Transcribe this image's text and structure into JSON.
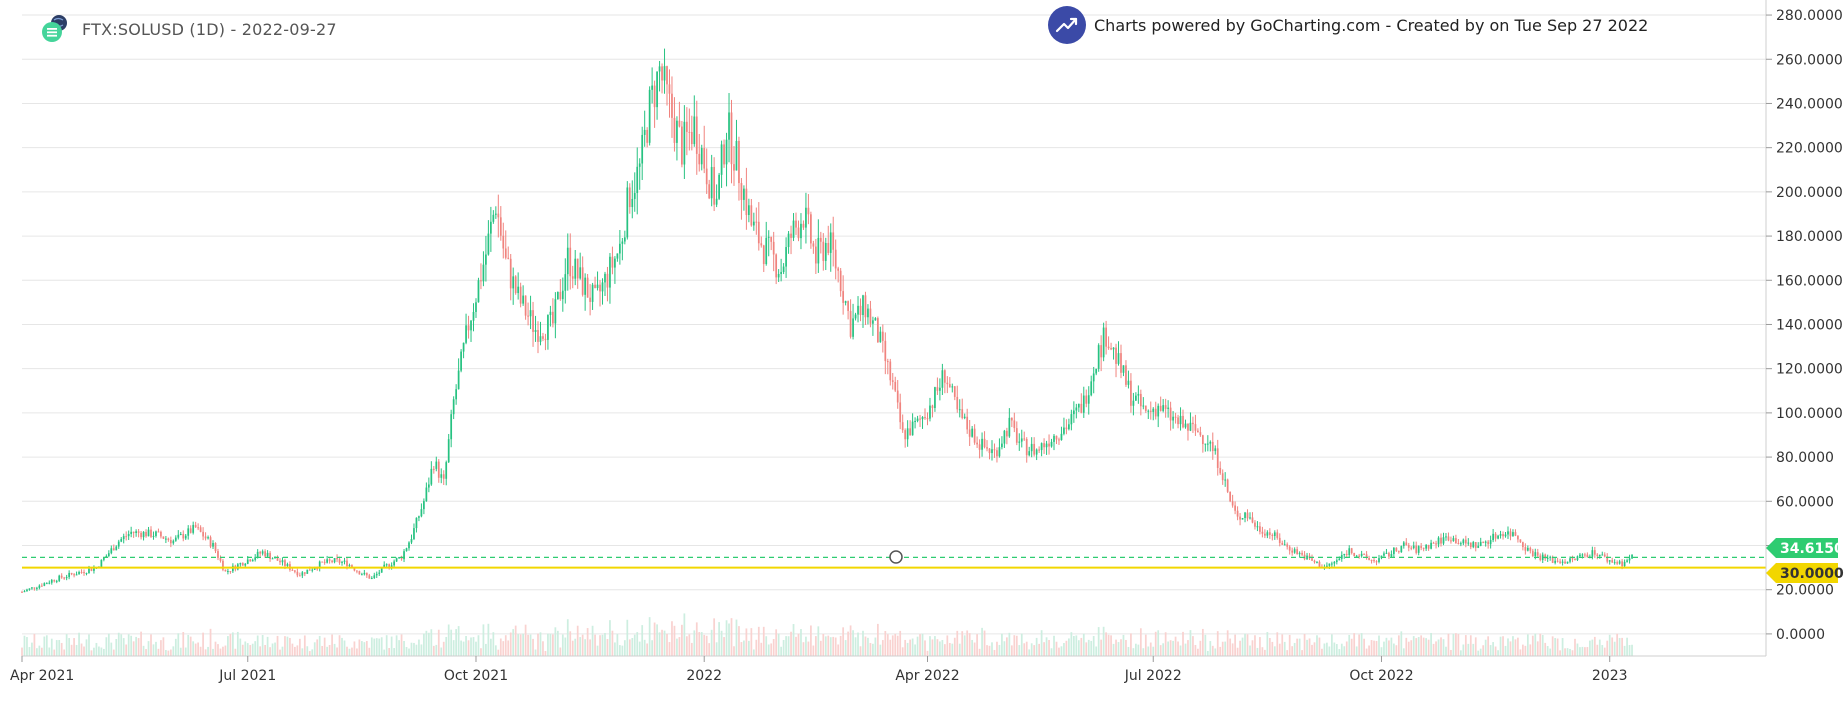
{
  "header": {
    "symbol_text": "FTX:SOLUSD (1D) - 2022-09-27",
    "powered_text": "Charts powered by GoCharting.com - Created by  on Tue Sep 27 2022"
  },
  "colors": {
    "up": "#26c281",
    "down": "#f0837e",
    "up_volume": "#cdeee0",
    "down_volume": "#f9d2d0",
    "last_price_line": "#2ecc71",
    "level_line": "#f2d600",
    "grid": "#e6e6e6",
    "badge": "#3b4aa7"
  },
  "price_tags": {
    "last_price": "34.6150",
    "level": "30.0000"
  },
  "chart_data": {
    "type": "candlestick",
    "title": "FTX:SOLUSD (1D) - 2022-09-27",
    "y_axis": {
      "side": "right",
      "range": [
        -10,
        285
      ],
      "tick_values": [
        0,
        20,
        40,
        60,
        80,
        100,
        120,
        140,
        160,
        180,
        200,
        220,
        240,
        260,
        280
      ],
      "tick_labels": [
        "0.0000",
        "20.0000",
        "40.0000",
        "60.0000",
        "80.0000",
        "100.0000",
        "120.0000",
        "140.0000",
        "160.0000",
        "180.0000",
        "200.0000",
        "220.0000",
        "240.0000",
        "260.0000",
        "280.0000"
      ]
    },
    "x_axis": {
      "range": [
        "2021-04-01",
        "2023-03-05"
      ],
      "tick_dates": [
        "2021-04-01",
        "2021-07-01",
        "2021-10-01",
        "2022-01-01",
        "2022-04-01",
        "2022-07-01",
        "2022-10-01",
        "2023-01-01"
      ],
      "tick_labels": [
        "Apr 2021",
        "Jul 2021",
        "Oct 2021",
        "2022",
        "Apr 2022",
        "Jul 2022",
        "Oct 2022",
        "2023"
      ]
    },
    "grid": "horizontal",
    "last_price": 34.615,
    "horizontal_level": 30,
    "series": [
      {
        "name": "price",
        "points": [
          [
            "2021-04-01",
            19
          ],
          [
            "2021-04-15",
            25
          ],
          [
            "2021-05-01",
            30
          ],
          [
            "2021-05-10",
            42
          ],
          [
            "2021-05-15",
            46
          ],
          [
            "2021-05-25",
            45
          ],
          [
            "2021-06-01",
            42
          ],
          [
            "2021-06-10",
            48
          ],
          [
            "2021-06-17",
            40
          ],
          [
            "2021-06-22",
            28
          ],
          [
            "2021-06-30",
            33
          ],
          [
            "2021-07-07",
            37
          ],
          [
            "2021-07-15",
            32
          ],
          [
            "2021-07-22",
            27
          ],
          [
            "2021-07-31",
            32
          ],
          [
            "2021-08-05",
            33
          ],
          [
            "2021-08-10",
            32
          ],
          [
            "2021-08-15",
            28
          ],
          [
            "2021-08-20",
            25
          ],
          [
            "2021-08-25",
            30
          ],
          [
            "2021-09-01",
            35
          ],
          [
            "2021-09-05",
            44
          ],
          [
            "2021-09-10",
            60
          ],
          [
            "2021-09-14",
            78
          ],
          [
            "2021-09-18",
            68
          ],
          [
            "2021-09-22",
            105
          ],
          [
            "2021-09-28",
            140
          ],
          [
            "2021-10-05",
            172
          ],
          [
            "2021-10-09",
            195
          ],
          [
            "2021-10-13",
            168
          ],
          [
            "2021-10-18",
            152
          ],
          [
            "2021-10-25",
            138
          ],
          [
            "2021-11-01",
            140
          ],
          [
            "2021-11-07",
            170
          ],
          [
            "2021-11-12",
            160
          ],
          [
            "2021-11-18",
            150
          ],
          [
            "2021-11-23",
            162
          ],
          [
            "2021-11-28",
            175
          ],
          [
            "2021-12-02",
            200
          ],
          [
            "2021-12-06",
            210
          ],
          [
            "2021-12-10",
            238
          ],
          [
            "2021-12-14",
            255
          ],
          [
            "2021-12-18",
            238
          ],
          [
            "2021-12-23",
            220
          ],
          [
            "2021-12-28",
            230
          ],
          [
            "2022-01-02",
            210
          ],
          [
            "2022-01-06",
            195
          ],
          [
            "2022-01-10",
            230
          ],
          [
            "2022-01-15",
            210
          ],
          [
            "2022-01-20",
            185
          ],
          [
            "2022-01-25",
            175
          ],
          [
            "2022-02-01",
            165
          ],
          [
            "2022-02-05",
            180
          ],
          [
            "2022-02-10",
            190
          ],
          [
            "2022-02-15",
            170
          ],
          [
            "2022-02-20",
            178
          ],
          [
            "2022-02-25",
            160
          ],
          [
            "2022-03-01",
            140
          ],
          [
            "2022-03-07",
            148
          ],
          [
            "2022-03-12",
            135
          ],
          [
            "2022-03-18",
            112
          ],
          [
            "2022-03-22",
            90
          ],
          [
            "2022-03-28",
            95
          ],
          [
            "2022-04-03",
            105
          ],
          [
            "2022-04-08",
            118
          ],
          [
            "2022-04-13",
            100
          ],
          [
            "2022-04-18",
            92
          ],
          [
            "2022-04-23",
            85
          ],
          [
            "2022-04-28",
            82
          ],
          [
            "2022-05-04",
            95
          ],
          [
            "2022-05-09",
            85
          ],
          [
            "2022-05-15",
            83
          ],
          [
            "2022-05-22",
            90
          ],
          [
            "2022-05-28",
            95
          ],
          [
            "2022-06-03",
            105
          ],
          [
            "2022-06-08",
            125
          ],
          [
            "2022-06-12",
            136
          ],
          [
            "2022-06-17",
            122
          ],
          [
            "2022-06-22",
            108
          ],
          [
            "2022-06-28",
            100
          ],
          [
            "2022-07-03",
            103
          ],
          [
            "2022-07-08",
            98
          ],
          [
            "2022-07-13",
            94
          ],
          [
            "2022-07-18",
            92
          ],
          [
            "2022-07-23",
            88
          ],
          [
            "2022-07-28",
            76
          ],
          [
            "2022-08-01",
            60
          ],
          [
            "2022-08-04",
            52
          ],
          [
            "2022-08-07",
            55
          ],
          [
            "2022-08-12",
            48
          ],
          [
            "2022-08-18",
            45
          ],
          [
            "2022-08-23",
            40
          ],
          [
            "2022-08-28",
            37
          ],
          [
            "2022-09-03",
            33
          ],
          [
            "2022-09-08",
            30
          ],
          [
            "2022-09-13",
            33
          ],
          [
            "2022-09-18",
            38
          ],
          [
            "2022-09-23",
            35
          ],
          [
            "2022-09-28",
            33
          ],
          [
            "2022-10-04",
            36
          ],
          [
            "2022-10-10",
            40
          ],
          [
            "2022-10-15",
            38
          ],
          [
            "2022-10-22",
            41
          ],
          [
            "2022-10-28",
            44
          ],
          [
            "2022-11-03",
            41
          ],
          [
            "2022-11-09",
            40
          ],
          [
            "2022-11-14",
            43
          ],
          [
            "2022-11-19",
            46
          ],
          [
            "2022-11-24",
            45
          ],
          [
            "2022-11-29",
            38
          ],
          [
            "2022-12-04",
            35
          ],
          [
            "2022-12-10",
            33
          ],
          [
            "2022-12-16",
            33
          ],
          [
            "2022-12-22",
            36
          ],
          [
            "2022-12-26",
            37
          ],
          [
            "2023-01-01",
            33
          ],
          [
            "2023-01-06",
            32
          ],
          [
            "2023-01-10",
            34.6
          ]
        ]
      }
    ]
  }
}
